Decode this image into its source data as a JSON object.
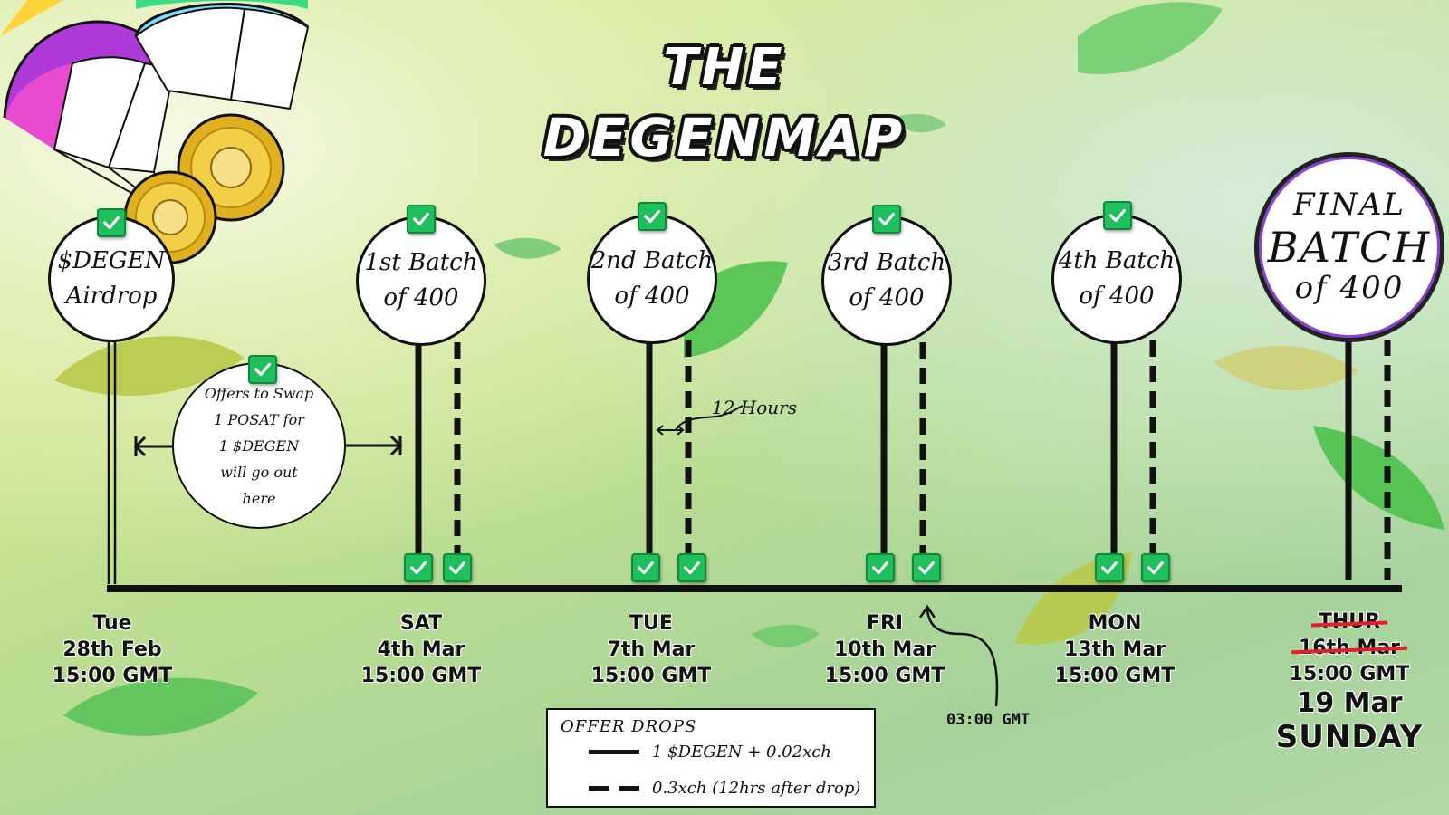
{
  "title": {
    "line1": "THE",
    "line2": "DEGENMAP"
  },
  "milestones": [
    {
      "line1": "$DEGEN",
      "line2": "Airdrop",
      "date": {
        "day": "Tue",
        "date": "28th Feb",
        "time": "15:00 GMT"
      }
    },
    {
      "line1": "1st Batch",
      "line2": "of 400",
      "date": {
        "day": "SAT",
        "date": "4th Mar",
        "time": "15:00 GMT"
      }
    },
    {
      "line1": "2nd Batch",
      "line2": "of 400",
      "date": {
        "day": "TUE",
        "date": "7th Mar",
        "time": "15:00 GMT"
      }
    },
    {
      "line1": "3rd Batch",
      "line2": "of 400",
      "date": {
        "day": "FRI",
        "date": "10th Mar",
        "time": "15:00 GMT"
      }
    },
    {
      "line1": "4th Batch",
      "line2": "of 400",
      "date": {
        "day": "MON",
        "date": "13th Mar",
        "time": "15:00 GMT"
      }
    }
  ],
  "final": {
    "line1": "FINAL",
    "line2": "BATCH",
    "line3": "of 400",
    "date": {
      "old_day": "THUR",
      "old_date": "16th Mar",
      "time": "15:00 GMT",
      "new_date": "19 Mar",
      "new_day": "SUNDAY"
    }
  },
  "swap_note": [
    "Offers to Swap",
    "1 POSAT for",
    "1 $DEGEN",
    "will go out",
    "here"
  ],
  "interval_note": "12 Hours",
  "time_note": "03:00 GMT",
  "legend": {
    "title": "OFFER DROPS",
    "solid": "1 $DEGEN + 0.02xch",
    "dashed": "0.3xch (12hrs after drop)"
  },
  "colors": {
    "check_green": "#1fbf5b",
    "strike_red": "#e0202b",
    "final_ring": "#8a3fd6"
  },
  "icons": [
    "checkmark-icon",
    "parachute-icon",
    "coin-icon",
    "leaf-icon",
    "arrow-icon"
  ]
}
